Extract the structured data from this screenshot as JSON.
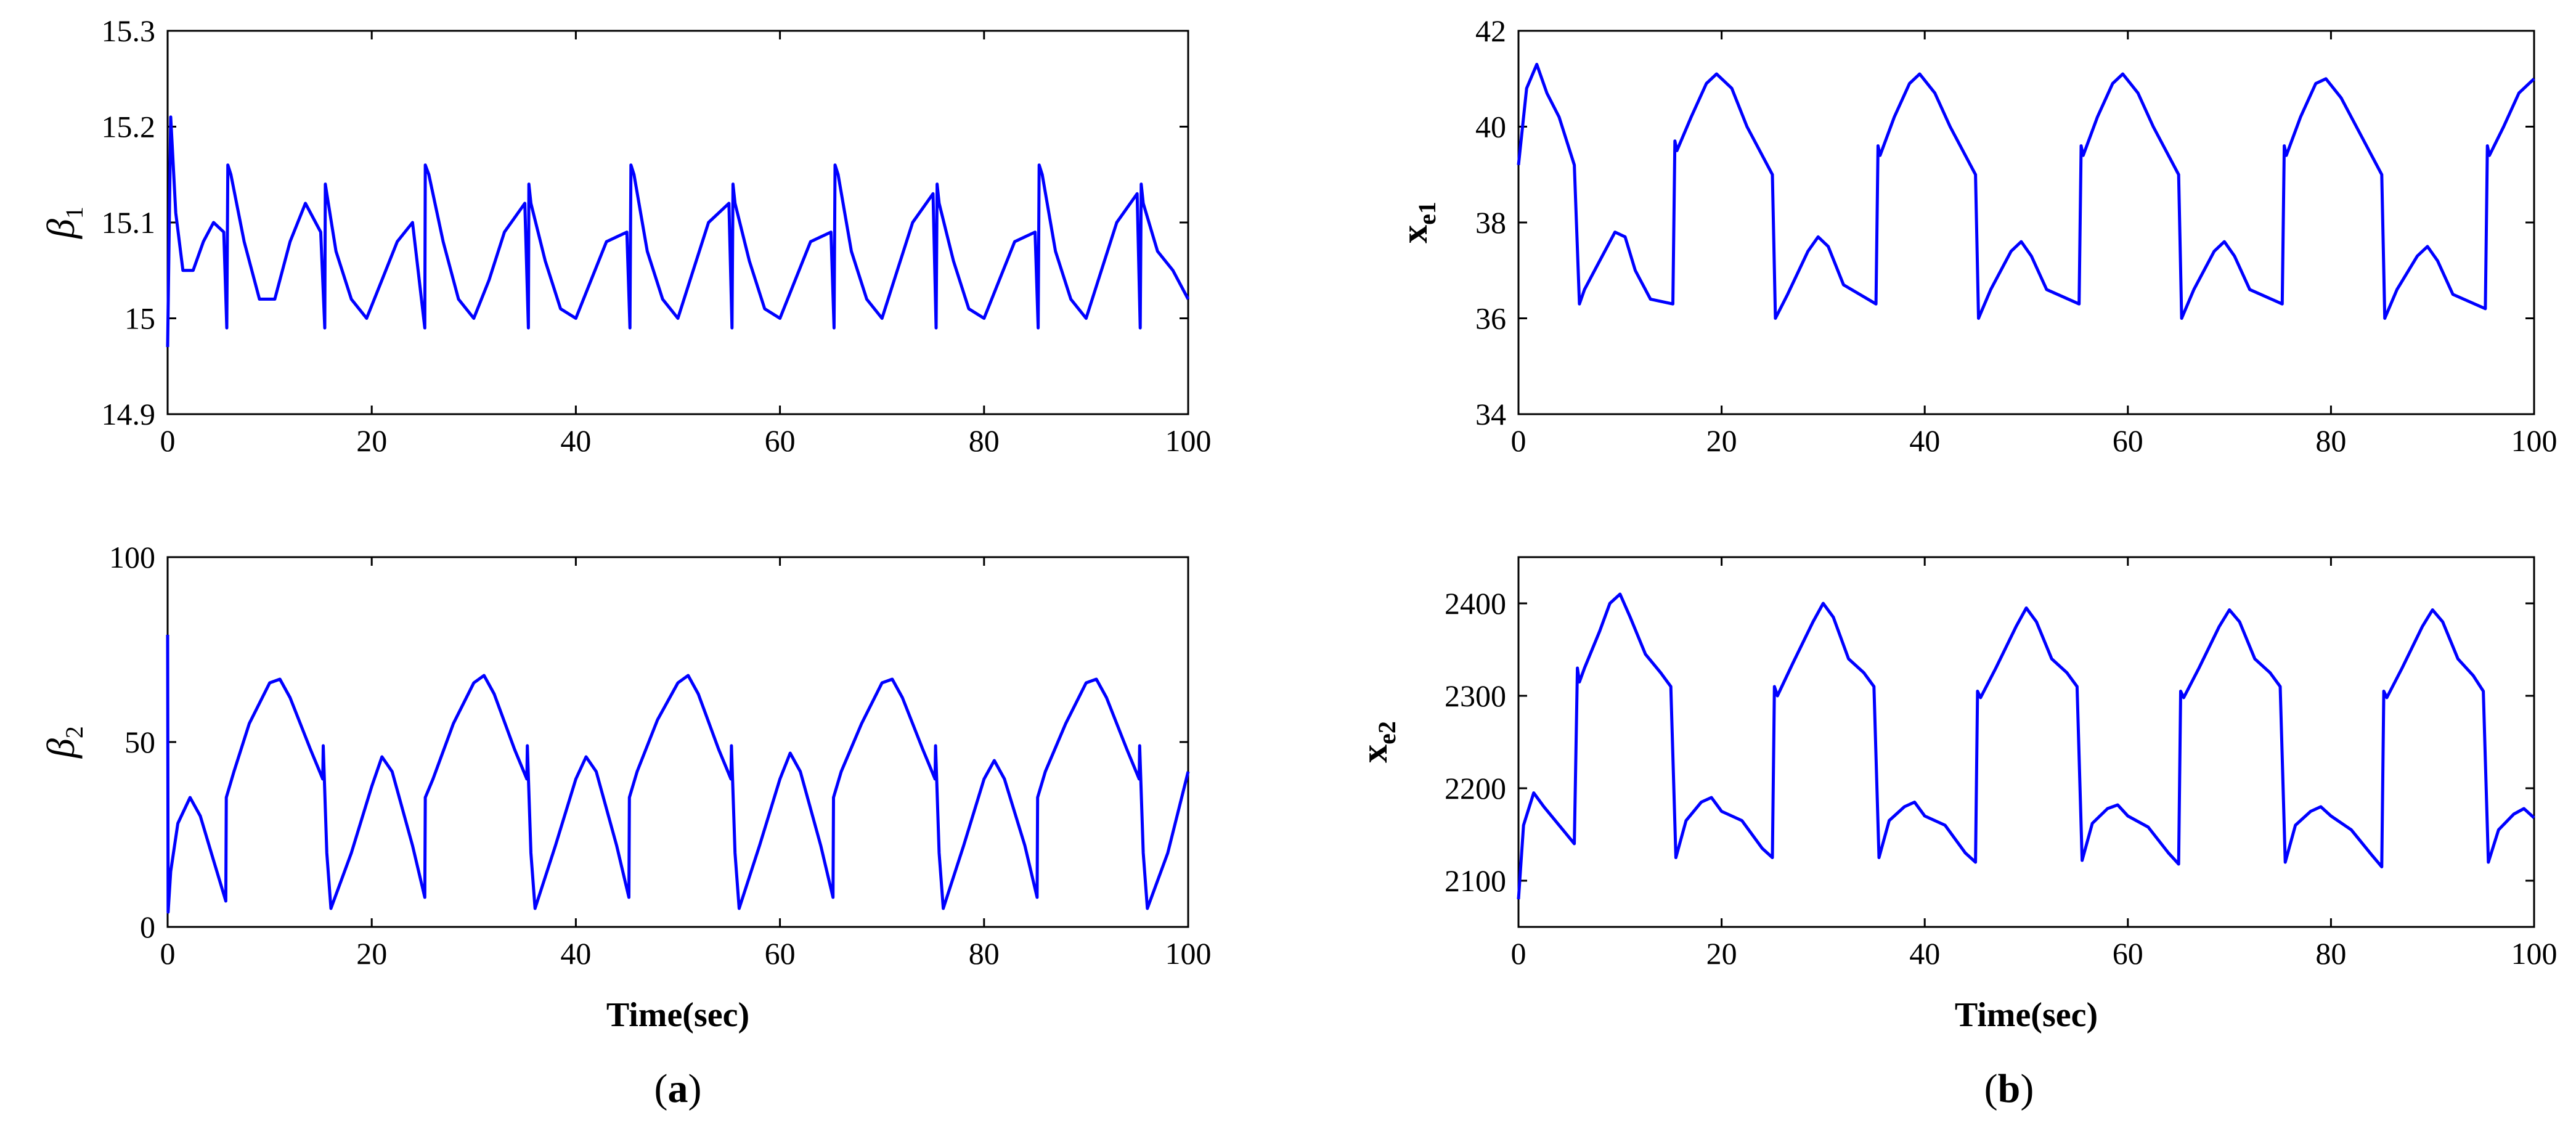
{
  "chart_data": [
    {
      "id": "a1",
      "type": "line",
      "ylabel_base": "β",
      "ylabel_sub": "1",
      "xlabel": "",
      "xlim": [
        0,
        100
      ],
      "ylim": [
        14.9,
        15.3
      ],
      "xticks": [
        "0",
        "20",
        "40",
        "60",
        "80",
        "100"
      ],
      "yticks": [
        "14.9",
        "15",
        "15.1",
        "15.2",
        "15.3"
      ],
      "color": "#0000ff",
      "series": [
        {
          "x": [
            0,
            0.3,
            0.8,
            1.5,
            2.5,
            3.5,
            4.5,
            5.5,
            5.8,
            5.9,
            6.2,
            7.5,
            9.0,
            10.5,
            12.0,
            13.5,
            15.0,
            15.4,
            15.45,
            15.6,
            16.5,
            18,
            19.5,
            21,
            22.5,
            24,
            25.2,
            25.25,
            25.6,
            27,
            28.5,
            30,
            31.5,
            33,
            35.0,
            35.35,
            35.4,
            35.6,
            37,
            38.5,
            40,
            41.5,
            43,
            45.0,
            45.3,
            45.4,
            45.7,
            47,
            48.5,
            50,
            51.5,
            53,
            55.0,
            55.3,
            55.4,
            55.6,
            57,
            58.5,
            60,
            61.5,
            63,
            65.0,
            65.3,
            65.4,
            65.7,
            67,
            68.5,
            70,
            71.5,
            73,
            75.0,
            75.3,
            75.4,
            75.6,
            77,
            78.5,
            80,
            81.5,
            83,
            85.0,
            85.3,
            85.4,
            85.7,
            87,
            88.5,
            90,
            91.5,
            93,
            95.0,
            95.3,
            95.4,
            95.6,
            97,
            98.5,
            100
          ],
          "values": [
            14.97,
            15.21,
            15.11,
            15.05,
            15.05,
            15.08,
            15.1,
            15.09,
            14.99,
            15.16,
            15.15,
            15.08,
            15.02,
            15.02,
            15.08,
            15.12,
            15.09,
            14.99,
            15.14,
            15.13,
            15.07,
            15.02,
            15.0,
            15.04,
            15.08,
            15.1,
            14.99,
            15.16,
            15.15,
            15.08,
            15.02,
            15.0,
            15.04,
            15.09,
            15.12,
            14.99,
            15.14,
            15.12,
            15.06,
            15.01,
            15.0,
            15.04,
            15.08,
            15.09,
            14.99,
            15.16,
            15.15,
            15.07,
            15.02,
            15.0,
            15.05,
            15.1,
            15.12,
            14.99,
            15.14,
            15.12,
            15.06,
            15.01,
            15.0,
            15.04,
            15.08,
            15.09,
            14.99,
            15.16,
            15.15,
            15.07,
            15.02,
            15.0,
            15.05,
            15.1,
            15.13,
            14.99,
            15.14,
            15.12,
            15.06,
            15.01,
            15.0,
            15.04,
            15.08,
            15.09,
            14.99,
            15.16,
            15.15,
            15.07,
            15.02,
            15.0,
            15.05,
            15.1,
            15.13,
            14.99,
            15.14,
            15.12,
            15.07,
            15.05,
            15.02
          ]
        }
      ]
    },
    {
      "id": "a2",
      "type": "line",
      "ylabel_base": "β",
      "ylabel_sub": "2",
      "xlabel": "Time(sec)",
      "xlim": [
        0,
        100
      ],
      "ylim": [
        0,
        100
      ],
      "xticks": [
        "0",
        "20",
        "40",
        "60",
        "80",
        "100"
      ],
      "yticks": [
        "0",
        "50",
        "100"
      ],
      "color": "#0000ff",
      "series": [
        {
          "x": [
            0,
            0.05,
            0.3,
            1.0,
            2.2,
            3.2,
            4.5,
            5.7,
            5.75,
            6.5,
            8,
            10,
            11,
            12,
            14,
            15.2,
            15.25,
            15.6,
            16,
            18,
            20,
            21,
            22,
            24,
            25.2,
            25.25,
            26,
            28,
            30,
            31,
            32,
            34,
            35.2,
            35.25,
            35.6,
            36,
            38,
            40,
            41,
            42,
            44,
            45.2,
            45.25,
            46,
            48,
            50,
            51,
            52,
            54,
            55.2,
            55.25,
            55.6,
            56,
            58,
            60,
            61,
            62,
            64,
            65.2,
            65.25,
            66,
            68,
            70,
            71,
            72,
            74,
            75.2,
            75.25,
            75.6,
            76,
            78,
            80,
            81,
            82,
            84,
            85.2,
            85.25,
            86,
            88,
            90,
            91,
            92,
            94,
            95.2,
            95.25,
            95.6,
            96,
            98,
            100
          ],
          "values": [
            79,
            4,
            15,
            28,
            35,
            30,
            18,
            7,
            35,
            42,
            55,
            66,
            67,
            62,
            48,
            40,
            49,
            20,
            5,
            20,
            38,
            46,
            42,
            22,
            8,
            35,
            40,
            55,
            66,
            68,
            63,
            48,
            40,
            49,
            20,
            5,
            22,
            40,
            46,
            42,
            22,
            8,
            35,
            42,
            56,
            66,
            68,
            63,
            48,
            40,
            49,
            20,
            5,
            22,
            40,
            47,
            42,
            22,
            8,
            35,
            42,
            55,
            66,
            67,
            62,
            48,
            40,
            49,
            20,
            5,
            22,
            40,
            45,
            40,
            22,
            8,
            35,
            42,
            55,
            66,
            67,
            62,
            48,
            40,
            49,
            20,
            5,
            20,
            42
          ]
        }
      ]
    },
    {
      "id": "b1",
      "type": "line",
      "ylabel_base": "x",
      "ylabel_sub": "e1",
      "xlabel": "",
      "xlim": [
        0,
        100
      ],
      "ylim": [
        34,
        42
      ],
      "xticks": [
        "0",
        "20",
        "40",
        "60",
        "80",
        "100"
      ],
      "yticks": [
        "34",
        "36",
        "38",
        "40",
        "42"
      ],
      "color": "#0000ff",
      "series": [
        {
          "x": [
            0,
            0.8,
            1.8,
            2.8,
            4.0,
            5.5,
            6.0,
            6.5,
            8,
            9.5,
            10.5,
            11.5,
            13,
            15.2,
            15.4,
            15.6,
            17,
            18.5,
            19.5,
            21,
            22.5,
            25.0,
            25.3,
            26.5,
            28.5,
            29.5,
            30.5,
            32,
            35.2,
            35.4,
            35.6,
            37,
            38.5,
            39.5,
            41,
            42.5,
            45.0,
            45.3,
            46.5,
            48.5,
            49.5,
            50.5,
            52,
            55.2,
            55.4,
            55.6,
            57,
            58.5,
            59.5,
            61,
            62.5,
            65.0,
            65.3,
            66.5,
            68.5,
            69.5,
            70.5,
            72,
            75.2,
            75.4,
            75.6,
            77,
            78.5,
            79.5,
            81,
            82.5,
            85.0,
            85.3,
            86.5,
            88.5,
            89.5,
            90.5,
            92,
            95.2,
            95.4,
            95.6,
            97,
            98.5,
            100
          ],
          "values": [
            39.2,
            40.8,
            41.3,
            40.7,
            40.2,
            39.2,
            36.3,
            36.6,
            37.2,
            37.8,
            37.7,
            37.0,
            36.4,
            36.3,
            39.7,
            39.5,
            40.2,
            40.9,
            41.1,
            40.8,
            40.0,
            39.0,
            36.0,
            36.5,
            37.4,
            37.7,
            37.5,
            36.7,
            36.3,
            39.6,
            39.4,
            40.2,
            40.9,
            41.1,
            40.7,
            40.0,
            39.0,
            36.0,
            36.6,
            37.4,
            37.6,
            37.3,
            36.6,
            36.3,
            39.6,
            39.4,
            40.2,
            40.9,
            41.1,
            40.7,
            40.0,
            39.0,
            36.0,
            36.6,
            37.4,
            37.6,
            37.3,
            36.6,
            36.3,
            39.6,
            39.4,
            40.2,
            40.9,
            41.0,
            40.6,
            40.0,
            39.0,
            36.0,
            36.6,
            37.3,
            37.5,
            37.2,
            36.5,
            36.2,
            39.6,
            39.4,
            40.0,
            40.7,
            41.0
          ]
        }
      ]
    },
    {
      "id": "b2",
      "type": "line",
      "ylabel_base": "x",
      "ylabel_sub": "e2",
      "xlabel": "Time(sec)",
      "xlim": [
        0,
        100
      ],
      "ylim": [
        2050,
        2450
      ],
      "xticks": [
        "0",
        "20",
        "40",
        "60",
        "80",
        "100"
      ],
      "yticks": [
        "2100",
        "2200",
        "2300",
        "2400"
      ],
      "color": "#0000ff",
      "series": [
        {
          "x": [
            0,
            0.5,
            1.5,
            2.5,
            4,
            5.5,
            5.8,
            6.0,
            6.5,
            8,
            9,
            10,
            11,
            12.5,
            14,
            15.0,
            15.5,
            16.5,
            18,
            19,
            20,
            22,
            24,
            25.0,
            25.2,
            25.5,
            27,
            29,
            30,
            31,
            32.5,
            34,
            35.0,
            35.5,
            36.5,
            38,
            39,
            40,
            42,
            44,
            45.0,
            45.2,
            45.5,
            47,
            49,
            50,
            51,
            52.5,
            54,
            55.0,
            55.5,
            56.5,
            58,
            59,
            60,
            62,
            64,
            65.0,
            65.2,
            65.5,
            67,
            69,
            70,
            71,
            72.5,
            74,
            75.0,
            75.5,
            76.5,
            78,
            79,
            80,
            82,
            84,
            85.0,
            85.2,
            85.5,
            87,
            89,
            90,
            91,
            92.5,
            94,
            95.0,
            95.5,
            96.5,
            98,
            99,
            100
          ],
          "values": [
            2080,
            2160,
            2195,
            2180,
            2160,
            2140,
            2330,
            2315,
            2330,
            2370,
            2400,
            2410,
            2385,
            2345,
            2325,
            2310,
            2125,
            2165,
            2185,
            2190,
            2175,
            2165,
            2135,
            2125,
            2310,
            2300,
            2335,
            2380,
            2400,
            2385,
            2340,
            2325,
            2310,
            2125,
            2165,
            2180,
            2185,
            2170,
            2160,
            2130,
            2120,
            2305,
            2298,
            2330,
            2375,
            2395,
            2380,
            2340,
            2325,
            2310,
            2122,
            2162,
            2178,
            2182,
            2170,
            2158,
            2130,
            2118,
            2305,
            2298,
            2330,
            2375,
            2393,
            2380,
            2340,
            2325,
            2310,
            2120,
            2160,
            2175,
            2180,
            2170,
            2155,
            2128,
            2115,
            2305,
            2298,
            2330,
            2375,
            2393,
            2380,
            2340,
            2322,
            2305,
            2120,
            2155,
            2172,
            2178,
            2168
          ]
        }
      ]
    }
  ],
  "panels": {
    "a": {
      "open": "(",
      "letter": "a",
      "close": ")"
    },
    "b": {
      "open": "(",
      "letter": "b",
      "close": ")"
    }
  }
}
